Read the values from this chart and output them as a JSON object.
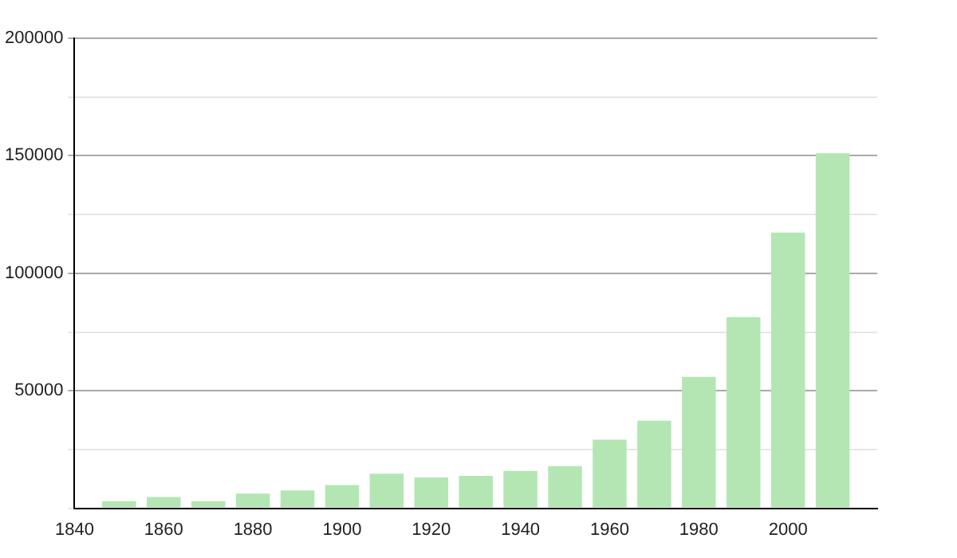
{
  "chart_data": {
    "type": "bar",
    "x": [
      1850,
      1860,
      1870,
      1880,
      1890,
      1900,
      1910,
      1920,
      1930,
      1940,
      1950,
      1960,
      1970,
      1980,
      1990,
      2000,
      2010
    ],
    "values": [
      3000,
      4800,
      3000,
      6200,
      7600,
      9900,
      14700,
      13100,
      13800,
      15900,
      17900,
      29200,
      37300,
      55900,
      81400,
      117300,
      151100
    ],
    "color": "#b3e6b3",
    "xlim": [
      1840,
      2020
    ],
    "xticks": [
      1840,
      1860,
      1880,
      1900,
      1920,
      1940,
      1960,
      1980,
      2000
    ],
    "ylim": [
      0,
      200000
    ],
    "yticks": [
      {
        "value": 0,
        "label": null
      },
      {
        "value": 25000,
        "label": null
      },
      50000,
      {
        "value": 75000,
        "label": null
      },
      100000,
      {
        "value": 125000,
        "label": null
      },
      150000,
      {
        "value": 175000,
        "label": null
      },
      200000
    ],
    "grid": "y",
    "legend": false
  }
}
